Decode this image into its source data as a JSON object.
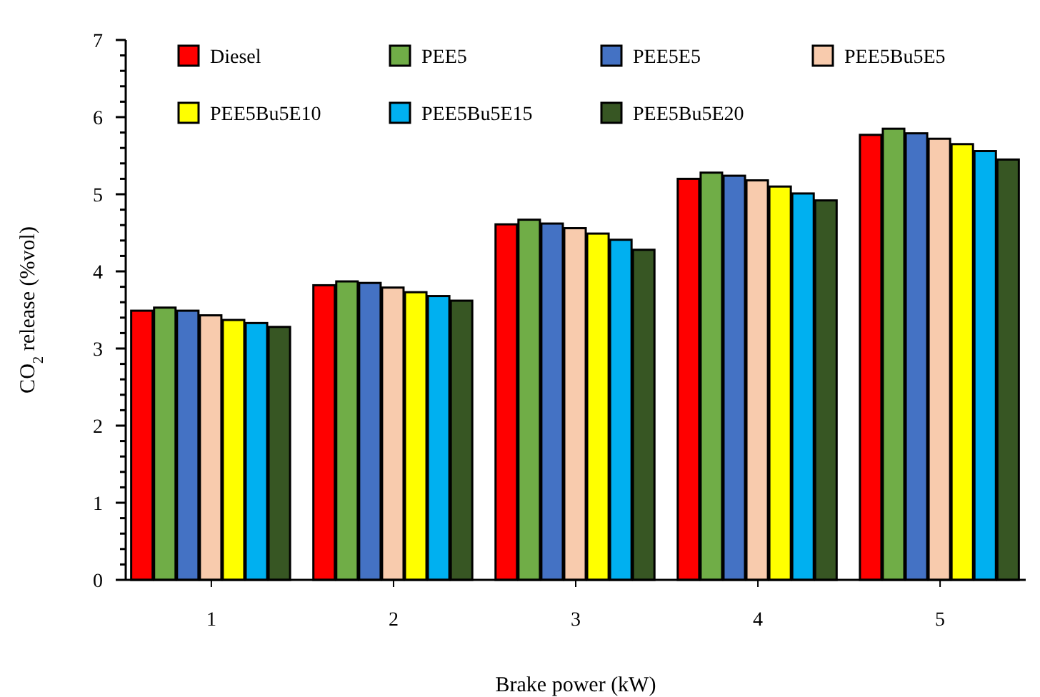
{
  "chart_data": {
    "type": "bar",
    "xlabel": "Brake power (kW)",
    "ylabel": "CO$_{2}$ release (%vol)",
    "categories": [
      "1",
      "2",
      "3",
      "4",
      "5"
    ],
    "ylim": [
      0,
      7
    ],
    "yticks": [
      0,
      {
        "value": 0.2,
        "label": null
      },
      {
        "value": 0.4,
        "label": null
      },
      {
        "value": 0.6,
        "label": null
      },
      {
        "value": 0.8,
        "label": null
      },
      1,
      {
        "value": 1.2,
        "label": null
      },
      {
        "value": 1.4,
        "label": null
      },
      {
        "value": 1.6,
        "label": null
      },
      {
        "value": 1.8,
        "label": null
      },
      2,
      {
        "value": 2.2,
        "label": null
      },
      {
        "value": 2.4,
        "label": null
      },
      {
        "value": 2.6,
        "label": null
      },
      {
        "value": 2.8,
        "label": null
      },
      3,
      {
        "value": 3.2,
        "label": null
      },
      {
        "value": 3.4,
        "label": null
      },
      {
        "value": 3.6,
        "label": null
      },
      {
        "value": 3.8,
        "label": null
      },
      4,
      {
        "value": 4.2,
        "label": null
      },
      {
        "value": 4.4,
        "label": null
      },
      {
        "value": 4.6,
        "label": null
      },
      {
        "value": 4.8,
        "label": null
      },
      5,
      {
        "value": 5.2,
        "label": null
      },
      {
        "value": 5.4,
        "label": null
      },
      {
        "value": 5.6,
        "label": null
      },
      {
        "value": 5.8,
        "label": null
      },
      6,
      {
        "value": 6.2,
        "label": null
      },
      {
        "value": 6.4,
        "label": null
      },
      {
        "value": 6.6,
        "label": null
      },
      {
        "value": 6.8,
        "label": null
      },
      7
    ],
    "legend": "top",
    "series": [
      {
        "name": "Diesel",
        "color": "#ff0000",
        "values": [
          3.49,
          3.82,
          4.61,
          5.2,
          5.77
        ]
      },
      {
        "name": "PEE5",
        "color": "#70ad47",
        "values": [
          3.53,
          3.87,
          4.67,
          5.28,
          5.85
        ]
      },
      {
        "name": "PEE5E5",
        "color": "#4472c4",
        "values": [
          3.49,
          3.85,
          4.62,
          5.24,
          5.79
        ]
      },
      {
        "name": "PEE5Bu5E5",
        "color": "#f8cbad",
        "values": [
          3.43,
          3.79,
          4.56,
          5.18,
          5.72
        ]
      },
      {
        "name": "PEE5Bu5E10",
        "color": "#ffff00",
        "values": [
          3.37,
          3.73,
          4.49,
          5.1,
          5.65
        ]
      },
      {
        "name": "PEE5Bu5E15",
        "color": "#00b0f0",
        "values": [
          3.33,
          3.68,
          4.41,
          5.01,
          5.56
        ]
      },
      {
        "name": "PEE5Bu5E20",
        "color": "#375623",
        "values": [
          3.28,
          3.62,
          4.28,
          4.92,
          5.45
        ]
      }
    ]
  }
}
